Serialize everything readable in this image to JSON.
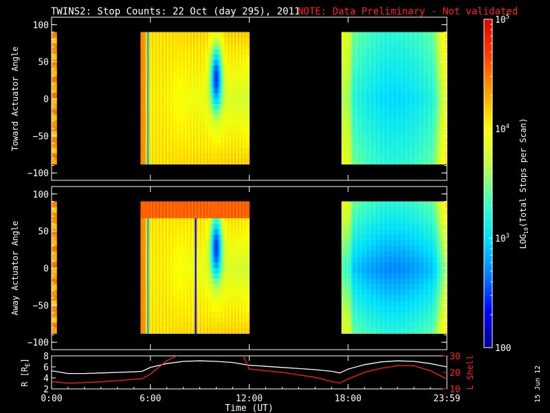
{
  "title": {
    "main": "TWINS2: Stop Counts: 22 Oct (day 295), 2011",
    "note": "NOTE: Data Preliminary - Not validated"
  },
  "footer_date": "15 Jun 12",
  "colorbar": {
    "label": "LOG",
    "label_sub": "10",
    "label_rest": "(Total Stops per Scan)",
    "scale": "log",
    "range": [
      100,
      100000
    ],
    "ticks": [
      {
        "value": 100,
        "label": "100"
      },
      {
        "value": 1000,
        "label": "10",
        "sup": "3"
      },
      {
        "value": 10000,
        "label": "10",
        "sup": "4"
      },
      {
        "value": 100000,
        "label": "10",
        "sup": "5"
      }
    ],
    "colors": [
      "#00008c",
      "#0000ff",
      "#0080ff",
      "#00e0ff",
      "#40ffc0",
      "#c0ff40",
      "#ffff00",
      "#ffa000",
      "#ff4000",
      "#e00000"
    ]
  },
  "chart_data": [
    {
      "type": "heatmap",
      "panel": "top",
      "ylabel": "Toward Actuator Angle",
      "xlim_hours": [
        0,
        24
      ],
      "ylim": [
        -110,
        110
      ],
      "yticks": [
        {
          "value": 100,
          "label": "100"
        },
        {
          "value": 50,
          "label": "50"
        },
        {
          "value": 0,
          "label": "0"
        },
        {
          "value": -50,
          "label": "−50"
        },
        {
          "value": -100,
          "label": "−100"
        }
      ],
      "data_blocks_hours": [
        [
          0.0,
          0.3
        ],
        [
          5.4,
          12.0
        ],
        [
          17.6,
          24.0
        ]
      ],
      "angle_range": [
        -88,
        90
      ]
    },
    {
      "type": "heatmap",
      "panel": "middle",
      "ylabel": "Away Actuator Angle",
      "xlim_hours": [
        0,
        24
      ],
      "ylim": [
        -110,
        110
      ],
      "yticks": [
        {
          "value": 100,
          "label": "100"
        },
        {
          "value": 50,
          "label": "50"
        },
        {
          "value": 0,
          "label": "0"
        },
        {
          "value": -50,
          "label": "−50"
        },
        {
          "value": -100,
          "label": "−100"
        }
      ],
      "data_blocks_hours": [
        [
          0.0,
          0.3
        ],
        [
          5.4,
          12.0
        ],
        [
          17.6,
          24.0
        ]
      ],
      "angle_range": [
        -88,
        90
      ]
    },
    {
      "type": "line",
      "panel": "bottom",
      "xlabel": "Time (UT)",
      "xticks": [
        {
          "value": 0,
          "label": "0:00"
        },
        {
          "value": 6,
          "label": "6:00"
        },
        {
          "value": 12,
          "label": "12:00"
        },
        {
          "value": 18,
          "label": "18:00"
        },
        {
          "value": 24,
          "label": "23:59"
        }
      ],
      "ylabel_left": "R [R",
      "ylabel_left_sub": "E",
      "ylabel_left_end": "]",
      "ylim_left": [
        2,
        8
      ],
      "yticks_left": [
        2,
        4,
        6,
        8
      ],
      "ylabel_right": "L Shell",
      "ylim_right": [
        10,
        30
      ],
      "yticks_right": [
        10,
        20,
        30
      ],
      "series": [
        {
          "color": "#ffffff",
          "axis": "left",
          "x": [
            0,
            1,
            2,
            3,
            4,
            5,
            5.5,
            6,
            7,
            8,
            9,
            10,
            11,
            12,
            13,
            14,
            15,
            16,
            17,
            17.5,
            18,
            19,
            20,
            21,
            22,
            23,
            24
          ],
          "y": [
            5.3,
            4.8,
            4.8,
            4.9,
            5.0,
            5.1,
            5.2,
            5.9,
            6.6,
            7.0,
            7.1,
            7.0,
            6.8,
            6.3,
            6.1,
            5.9,
            5.7,
            5.5,
            5.2,
            4.9,
            5.6,
            6.4,
            6.9,
            7.1,
            7.0,
            6.6,
            6.0
          ]
        },
        {
          "color": "#ff2020",
          "axis": "right",
          "segments": [
            {
              "x": [
                0,
                1,
                2,
                3,
                4,
                5,
                5.5,
                6,
                6.5,
                7.0,
                7.8
              ],
              "y": [
                14.5,
                13.5,
                13.8,
                14.3,
                15,
                15.8,
                16.2,
                19,
                23,
                27,
                31
              ]
            },
            {
              "x": [
                11.6,
                12.0,
                13,
                14,
                15,
                16,
                17,
                17.5,
                18,
                19,
                20,
                21,
                22,
                23,
                24
              ],
              "y": [
                31,
                22,
                21,
                20,
                18.5,
                17,
                14.5,
                13.5,
                16,
                20,
                22.5,
                24,
                24,
                21,
                16
              ]
            }
          ]
        }
      ]
    }
  ]
}
